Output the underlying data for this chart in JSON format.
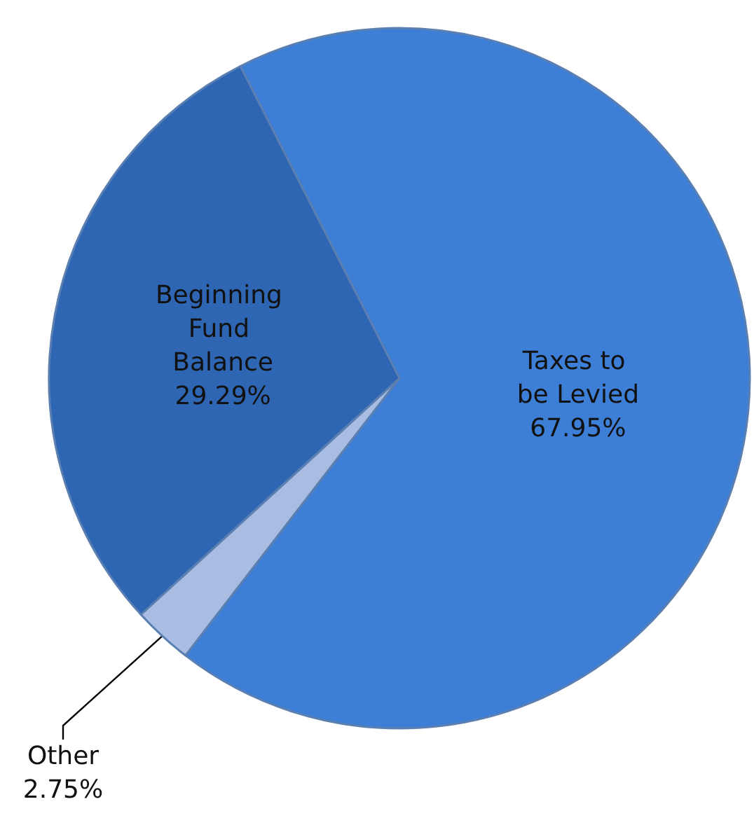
{
  "chart_data": {
    "type": "pie",
    "categories": [
      "Taxes to be Levied",
      "Other",
      "Beginning Fund Balance"
    ],
    "values": [
      67.95,
      2.75,
      29.29
    ],
    "colors": [
      "#3d7fd6",
      "#a9bde2",
      "#2f66b3"
    ],
    "value_labels": [
      "67.95%",
      "2.75%",
      "29.29%"
    ],
    "legend": false
  }
}
